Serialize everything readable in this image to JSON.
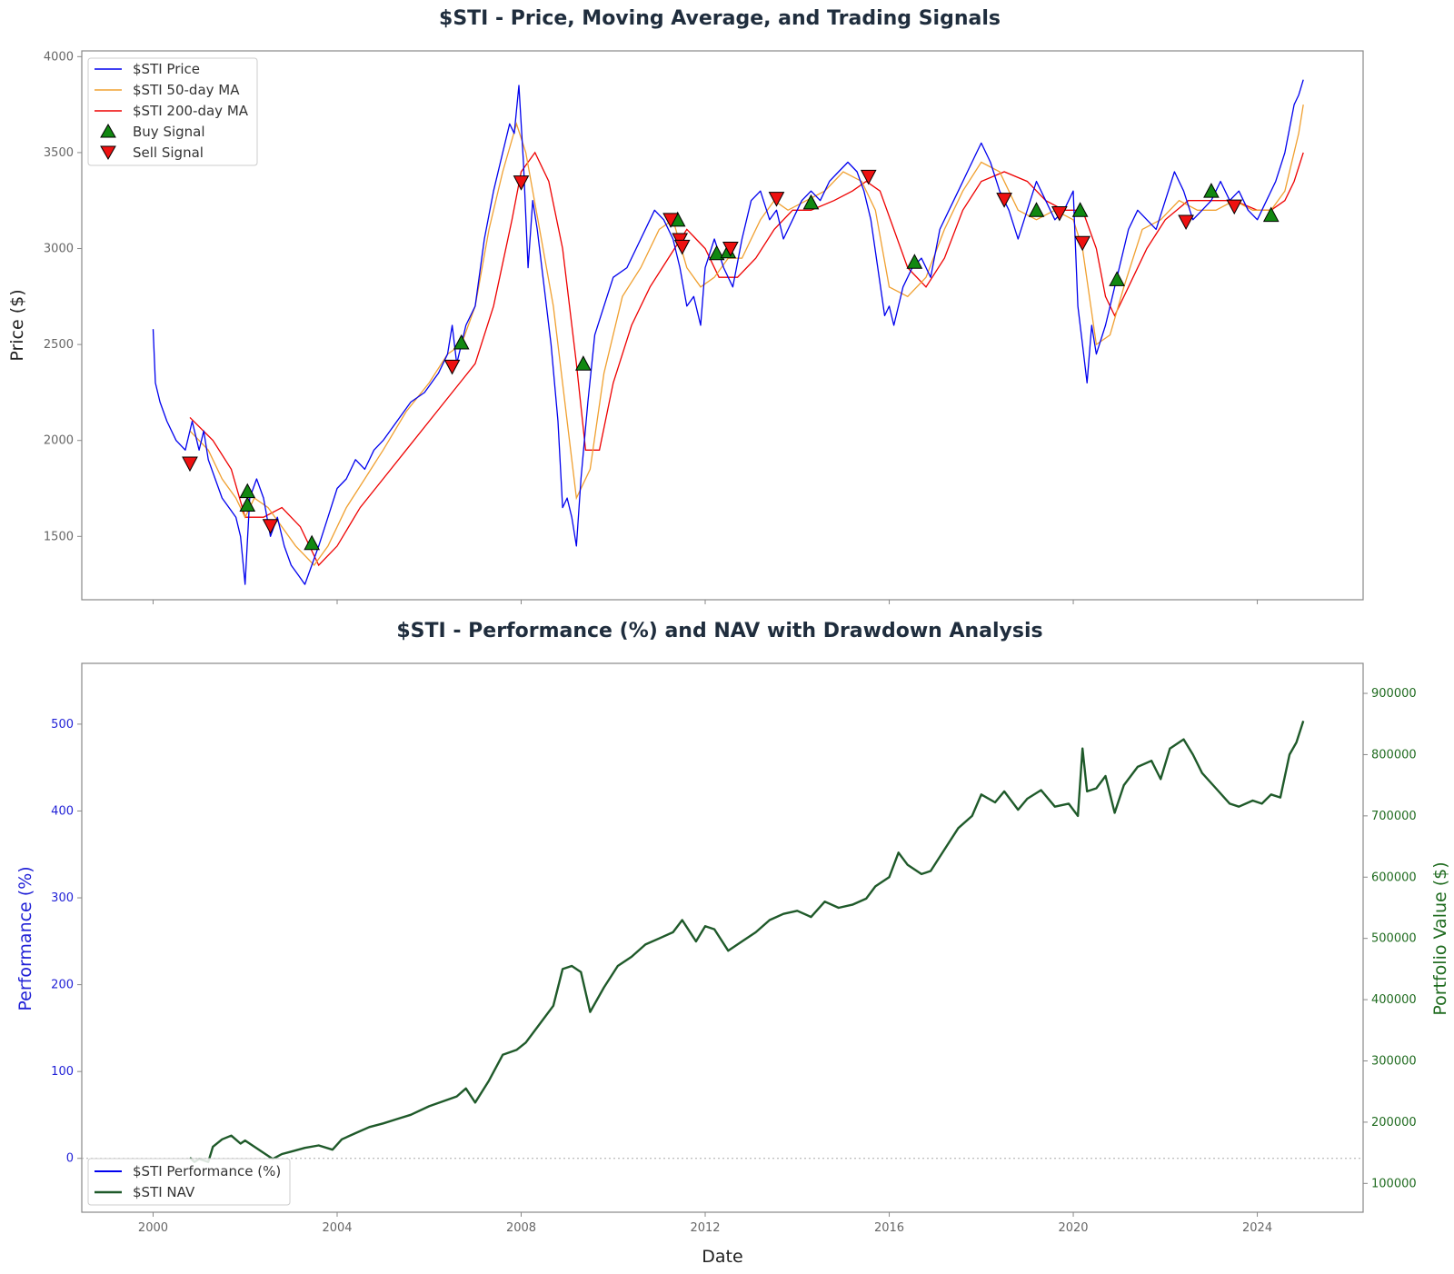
{
  "chart_data": [
    {
      "type": "line",
      "title": "$STI - Price, Moving Average, and Trading Signals",
      "ylabel": "Price ($)",
      "xlabel": "",
      "xlim": [
        1998.45,
        2026.3
      ],
      "ylim": [
        1170,
        4030
      ],
      "x_ticks": [
        2000,
        2004,
        2008,
        2012,
        2016,
        2020,
        2024
      ],
      "y_ticks": [
        1500,
        2000,
        2500,
        3000,
        3500,
        4000
      ],
      "legend_position": "upper left",
      "grid": false,
      "series": [
        {
          "name": "$STI Price",
          "color": "#0000ee",
          "x": [
            2000.0,
            2000.05,
            2000.15,
            2000.3,
            2000.5,
            2000.7,
            2000.85,
            2001.0,
            2001.1,
            2001.2,
            2001.35,
            2001.5,
            2001.65,
            2001.8,
            2001.9,
            2002.0,
            2002.1,
            2002.25,
            2002.4,
            2002.55,
            2002.7,
            2002.85,
            2003.0,
            2003.15,
            2003.3,
            2003.45,
            2003.6,
            2003.8,
            2004.0,
            2004.2,
            2004.4,
            2004.6,
            2004.8,
            2005.0,
            2005.3,
            2005.6,
            2005.9,
            2006.2,
            2006.4,
            2006.5,
            2006.6,
            2006.8,
            2007.0,
            2007.2,
            2007.4,
            2007.6,
            2007.75,
            2007.85,
            2007.95,
            2008.05,
            2008.15,
            2008.25,
            2008.35,
            2008.5,
            2008.65,
            2008.8,
            2008.9,
            2009.0,
            2009.1,
            2009.2,
            2009.3,
            2009.45,
            2009.6,
            2009.8,
            2010.0,
            2010.3,
            2010.6,
            2010.9,
            2011.1,
            2011.3,
            2011.45,
            2011.6,
            2011.75,
            2011.9,
            2012.0,
            2012.2,
            2012.4,
            2012.6,
            2012.8,
            2013.0,
            2013.2,
            2013.4,
            2013.55,
            2013.7,
            2013.9,
            2014.1,
            2014.3,
            2014.5,
            2014.7,
            2014.9,
            2015.1,
            2015.3,
            2015.45,
            2015.6,
            2015.75,
            2015.9,
            2016.0,
            2016.1,
            2016.3,
            2016.5,
            2016.7,
            2016.9,
            2017.1,
            2017.3,
            2017.5,
            2017.7,
            2017.9,
            2018.0,
            2018.2,
            2018.4,
            2018.6,
            2018.8,
            2019.0,
            2019.2,
            2019.4,
            2019.6,
            2019.8,
            2020.0,
            2020.1,
            2020.2,
            2020.3,
            2020.4,
            2020.5,
            2020.7,
            2020.9,
            2021.0,
            2021.2,
            2021.4,
            2021.6,
            2021.8,
            2022.0,
            2022.2,
            2022.4,
            2022.6,
            2022.8,
            2023.0,
            2023.2,
            2023.4,
            2023.6,
            2023.8,
            2024.0,
            2024.2,
            2024.4,
            2024.6,
            2024.8,
            2024.9,
            2025.0
          ],
          "y": [
            2580,
            2300,
            2200,
            2100,
            2000,
            1950,
            2100,
            1950,
            2050,
            1900,
            1800,
            1700,
            1650,
            1600,
            1500,
            1250,
            1700,
            1800,
            1700,
            1500,
            1600,
            1450,
            1350,
            1300,
            1250,
            1350,
            1450,
            1600,
            1750,
            1800,
            1900,
            1850,
            1950,
            2000,
            2100,
            2200,
            2250,
            2350,
            2450,
            2600,
            2400,
            2600,
            2700,
            3050,
            3300,
            3500,
            3650,
            3600,
            3850,
            3450,
            2900,
            3250,
            3100,
            2800,
            2500,
            2100,
            1650,
            1700,
            1600,
            1450,
            1800,
            2200,
            2550,
            2700,
            2850,
            2900,
            3050,
            3200,
            3150,
            3050,
            2900,
            2700,
            2750,
            2600,
            2900,
            3050,
            2900,
            2800,
            3050,
            3250,
            3300,
            3150,
            3200,
            3050,
            3150,
            3250,
            3300,
            3250,
            3350,
            3400,
            3450,
            3400,
            3300,
            3150,
            2900,
            2650,
            2700,
            2600,
            2800,
            2900,
            2950,
            2850,
            3100,
            3200,
            3300,
            3400,
            3500,
            3550,
            3450,
            3300,
            3200,
            3050,
            3200,
            3350,
            3250,
            3150,
            3200,
            3300,
            2700,
            2500,
            2300,
            2600,
            2450,
            2600,
            2800,
            2900,
            3100,
            3200,
            3150,
            3100,
            3250,
            3400,
            3300,
            3150,
            3200,
            3250,
            3350,
            3250,
            3300,
            3200,
            3150,
            3250,
            3350,
            3500,
            3750,
            3800,
            3880
          ]
        },
        {
          "name": "$STI 50-day MA",
          "color": "#f0a030",
          "x": [
            2000.8,
            2001.0,
            2001.2,
            2001.5,
            2001.8,
            2002.0,
            2002.2,
            2002.5,
            2002.8,
            2003.1,
            2003.5,
            2003.8,
            2004.2,
            2004.6,
            2005.0,
            2005.5,
            2006.0,
            2006.4,
            2006.7,
            2007.0,
            2007.3,
            2007.6,
            2007.9,
            2008.1,
            2008.4,
            2008.7,
            2009.0,
            2009.2,
            2009.5,
            2009.8,
            2010.2,
            2010.6,
            2011.0,
            2011.3,
            2011.6,
            2011.9,
            2012.2,
            2012.5,
            2012.8,
            2013.2,
            2013.5,
            2013.8,
            2014.2,
            2014.6,
            2015.0,
            2015.4,
            2015.7,
            2016.0,
            2016.4,
            2016.8,
            2017.2,
            2017.6,
            2018.0,
            2018.4,
            2018.8,
            2019.2,
            2019.6,
            2020.0,
            2020.2,
            2020.5,
            2020.8,
            2021.1,
            2021.5,
            2021.9,
            2022.3,
            2022.7,
            2023.1,
            2023.5,
            2023.9,
            2024.3,
            2024.6,
            2024.9,
            2025.0
          ],
          "y": [
            2050,
            2000,
            1950,
            1800,
            1700,
            1600,
            1700,
            1650,
            1550,
            1450,
            1350,
            1450,
            1650,
            1800,
            1950,
            2150,
            2300,
            2450,
            2500,
            2700,
            3100,
            3400,
            3650,
            3500,
            3100,
            2700,
            2100,
            1700,
            1850,
            2350,
            2750,
            2900,
            3100,
            3150,
            2900,
            2800,
            2850,
            2950,
            2950,
            3150,
            3250,
            3200,
            3250,
            3300,
            3400,
            3350,
            3200,
            2800,
            2750,
            2850,
            3100,
            3300,
            3450,
            3400,
            3200,
            3150,
            3200,
            3150,
            3000,
            2500,
            2550,
            2800,
            3100,
            3150,
            3250,
            3200,
            3200,
            3250,
            3200,
            3200,
            3300,
            3600,
            3750
          ]
        },
        {
          "name": "$STI 200-day MA",
          "color": "#ee0000",
          "x": [
            2000.8,
            2001.3,
            2001.7,
            2002.0,
            2002.4,
            2002.8,
            2003.2,
            2003.6,
            2004.0,
            2004.5,
            2005.0,
            2005.5,
            2006.0,
            2006.5,
            2007.0,
            2007.4,
            2007.8,
            2008.0,
            2008.3,
            2008.6,
            2008.9,
            2009.2,
            2009.4,
            2009.7,
            2010.0,
            2010.4,
            2010.8,
            2011.2,
            2011.6,
            2012.0,
            2012.3,
            2012.7,
            2013.1,
            2013.5,
            2013.9,
            2014.3,
            2014.8,
            2015.2,
            2015.5,
            2015.8,
            2016.1,
            2016.4,
            2016.8,
            2017.2,
            2017.6,
            2018.0,
            2018.5,
            2019.0,
            2019.4,
            2019.8,
            2020.2,
            2020.5,
            2020.7,
            2020.9,
            2021.2,
            2021.6,
            2022.0,
            2022.5,
            2023.0,
            2023.5,
            2024.0,
            2024.3,
            2024.6,
            2024.8,
            2025.0
          ],
          "y": [
            2120,
            2000,
            1850,
            1600,
            1600,
            1650,
            1550,
            1350,
            1450,
            1650,
            1800,
            1950,
            2100,
            2250,
            2400,
            2700,
            3150,
            3400,
            3500,
            3350,
            3000,
            2400,
            1950,
            1950,
            2300,
            2600,
            2800,
            2950,
            3100,
            3000,
            2850,
            2850,
            2950,
            3100,
            3200,
            3200,
            3250,
            3300,
            3350,
            3300,
            3100,
            2900,
            2800,
            2950,
            3200,
            3350,
            3400,
            3350,
            3250,
            3200,
            3200,
            3000,
            2750,
            2650,
            2800,
            3000,
            3150,
            3250,
            3250,
            3250,
            3200,
            3200,
            3250,
            3350,
            3500
          ]
        }
      ],
      "buy_signals": {
        "name": "Buy Signal",
        "color": "#118811",
        "x": [
          2002.05,
          2002.05,
          2003.45,
          2006.7,
          2009.35,
          2011.4,
          2012.25,
          2012.5,
          2014.3,
          2016.55,
          2019.2,
          2020.15,
          2020.95,
          2023.0,
          2024.3
        ],
        "y": [
          1665,
          1735,
          1465,
          2510,
          2400,
          3150,
          2975,
          2985,
          3240,
          2930,
          3200,
          3200,
          2840,
          3300,
          3175
        ]
      },
      "sell_signals": {
        "name": "Sell Signal",
        "color": "#ee1111",
        "x": [
          2000.8,
          2002.55,
          2006.5,
          2008.0,
          2011.25,
          2011.45,
          2011.5,
          2012.55,
          2013.55,
          2015.55,
          2018.5,
          2019.7,
          2020.2,
          2022.45,
          2023.5
        ],
        "y": [
          1880,
          1555,
          2385,
          3345,
          3150,
          3045,
          3010,
          3000,
          3260,
          3375,
          3255,
          3185,
          3030,
          3140,
          3220
        ]
      }
    },
    {
      "type": "line",
      "title": "$STI - Performance (%) and NAV with Drawdown Analysis",
      "xlabel": "Date",
      "ylabel": "Performance (%)",
      "y2label": "Portfolio Value ($)",
      "xlim": [
        1998.45,
        2026.3
      ],
      "ylim": [
        -62,
        570
      ],
      "y2lim": [
        53000,
        949000
      ],
      "x_ticks": [
        2000,
        2004,
        2008,
        2012,
        2016,
        2020,
        2024
      ],
      "y_ticks": [
        0,
        100,
        200,
        300,
        400,
        500
      ],
      "y2_ticks": [
        100000,
        200000,
        300000,
        400000,
        500000,
        600000,
        700000,
        800000,
        900000
      ],
      "zero_line": true,
      "legend_position": "lower left",
      "series": [
        {
          "name": "$STI Performance (%)",
          "color": "#0000ee",
          "x": [],
          "y": []
        },
        {
          "name": "$STI NAV",
          "color": "#1f5a2a",
          "x": [
            2000.8,
            2000.9,
            2001.0,
            2001.2,
            2001.3,
            2001.5,
            2001.7,
            2001.9,
            2002.0,
            2002.3,
            2002.6,
            2002.8,
            2003.0,
            2003.3,
            2003.6,
            2003.9,
            2004.1,
            2004.4,
            2004.7,
            2005.0,
            2005.3,
            2005.6,
            2006.0,
            2006.3,
            2006.6,
            2006.8,
            2007.0,
            2007.3,
            2007.6,
            2007.9,
            2008.1,
            2008.4,
            2008.7,
            2008.9,
            2009.1,
            2009.3,
            2009.5,
            2009.8,
            2010.1,
            2010.4,
            2010.7,
            2011.0,
            2011.3,
            2011.5,
            2011.8,
            2012.0,
            2012.2,
            2012.5,
            2012.8,
            2013.1,
            2013.4,
            2013.7,
            2014.0,
            2014.3,
            2014.6,
            2014.9,
            2015.2,
            2015.5,
            2015.7,
            2016.0,
            2016.2,
            2016.4,
            2016.7,
            2016.9,
            2017.2,
            2017.5,
            2017.8,
            2018.0,
            2018.3,
            2018.5,
            2018.8,
            2019.0,
            2019.3,
            2019.6,
            2019.9,
            2020.1,
            2020.2,
            2020.3,
            2020.5,
            2020.7,
            2020.9,
            2021.1,
            2021.4,
            2021.7,
            2021.9,
            2022.1,
            2022.4,
            2022.6,
            2022.8,
            2023.1,
            2023.4,
            2023.6,
            2023.9,
            2024.1,
            2024.3,
            2024.5,
            2024.7,
            2024.85,
            2025.0
          ],
          "y": [
            142000,
            135000,
            140000,
            135000,
            160000,
            172000,
            178000,
            165000,
            170000,
            155000,
            140000,
            148000,
            152000,
            158000,
            162000,
            155000,
            172000,
            182000,
            192000,
            198000,
            205000,
            212000,
            226000,
            234000,
            242000,
            255000,
            232000,
            268000,
            310000,
            318000,
            330000,
            360000,
            390000,
            450000,
            455000,
            445000,
            380000,
            420000,
            455000,
            470000,
            490000,
            500000,
            510000,
            530000,
            495000,
            520000,
            515000,
            480000,
            495000,
            510000,
            530000,
            540000,
            545000,
            535000,
            560000,
            550000,
            555000,
            565000,
            585000,
            600000,
            640000,
            620000,
            605000,
            610000,
            645000,
            680000,
            700000,
            735000,
            722000,
            740000,
            710000,
            728000,
            742000,
            715000,
            720000,
            700000,
            810000,
            740000,
            745000,
            765000,
            705000,
            750000,
            780000,
            790000,
            760000,
            810000,
            825000,
            800000,
            770000,
            745000,
            720000,
            715000,
            725000,
            720000,
            735000,
            730000,
            800000,
            820000,
            855000
          ]
        }
      ]
    }
  ]
}
